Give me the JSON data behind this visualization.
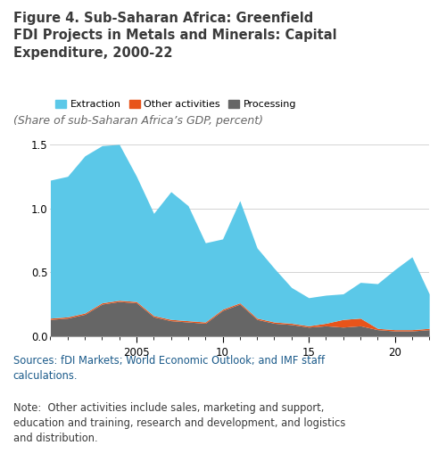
{
  "title": "Figure 4. Sub-Saharan Africa: Greenfield\nFDI Projects in Metals and Minerals: Capital\nExpenditure, 2000-22",
  "subtitle": "(Share of sub-Saharan Africa’s GDP, percent)",
  "sources": "Sources: fDI Markets; World Economic Outlook; and IMF staff\ncalculations.",
  "note": "Note:  Other activities include sales, marketing and support,\neducation and training, research and development, and logistics\nand distribution.",
  "years": [
    2000,
    2001,
    2002,
    2003,
    2004,
    2005,
    2006,
    2007,
    2008,
    2009,
    2010,
    2011,
    2012,
    2013,
    2014,
    2015,
    2016,
    2017,
    2018,
    2019,
    2020,
    2021,
    2022
  ],
  "processing": [
    0.13,
    0.14,
    0.17,
    0.25,
    0.27,
    0.26,
    0.15,
    0.12,
    0.11,
    0.1,
    0.2,
    0.25,
    0.13,
    0.1,
    0.09,
    0.07,
    0.08,
    0.07,
    0.08,
    0.05,
    0.04,
    0.04,
    0.05
  ],
  "other": [
    0.01,
    0.01,
    0.01,
    0.01,
    0.01,
    0.01,
    0.01,
    0.01,
    0.01,
    0.01,
    0.01,
    0.01,
    0.01,
    0.01,
    0.01,
    0.01,
    0.02,
    0.06,
    0.06,
    0.01,
    0.01,
    0.01,
    0.01
  ],
  "extraction": [
    1.08,
    1.1,
    1.23,
    1.23,
    1.22,
    0.98,
    0.8,
    1.0,
    0.9,
    0.62,
    0.55,
    0.8,
    0.55,
    0.42,
    0.28,
    0.22,
    0.22,
    0.2,
    0.28,
    0.35,
    0.47,
    0.57,
    0.27
  ],
  "color_processing": "#666666",
  "color_other": "#E8541A",
  "color_extraction": "#5BC8E8",
  "ylim": [
    0.0,
    1.6
  ],
  "yticks": [
    0.0,
    0.5,
    1.0,
    1.5
  ],
  "xtick_positions": [
    2005,
    2010,
    2015,
    2020
  ],
  "xtick_labels": [
    "2005",
    "10",
    "15",
    "20"
  ],
  "legend_labels": [
    "Extraction",
    "Other activities",
    "Processing"
  ],
  "title_color": "#3a3a3a",
  "subtitle_color": "#666666",
  "source_color": "#1a5a8a",
  "note_color": "#3a3a3a",
  "background_color": "#ffffff"
}
